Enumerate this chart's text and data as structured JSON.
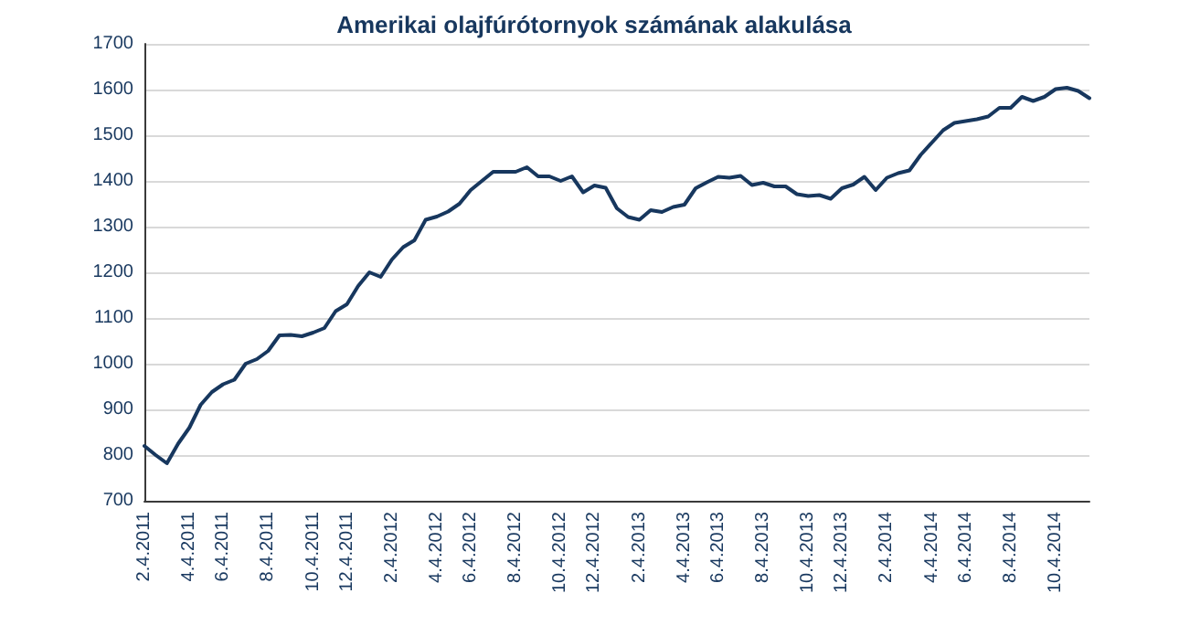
{
  "chart_data": {
    "type": "line",
    "title": "Amerikai olajfúrótornyok számának alakulása",
    "categories": [
      "2.4.2011",
      null,
      null,
      null,
      "4.4.2011",
      null,
      null,
      "6.4.2011",
      null,
      null,
      null,
      "8.4.2011",
      null,
      null,
      null,
      "10.4.2011",
      null,
      null,
      "12.4.2011",
      null,
      null,
      null,
      "2.4.2012",
      null,
      null,
      null,
      "4.4.2012",
      null,
      null,
      "6.4.2012",
      null,
      null,
      null,
      "8.4.2012",
      null,
      null,
      null,
      "10.4.2012",
      null,
      null,
      "12.4.2012",
      null,
      null,
      null,
      "2.4.2013",
      null,
      null,
      null,
      "4.4.2013",
      null,
      null,
      "6.4.2013",
      null,
      null,
      null,
      "8.4.2013",
      null,
      null,
      null,
      "10.4.2013",
      null,
      null,
      "12.4.2013",
      null,
      null,
      null,
      "2.4.2014",
      null,
      null,
      null,
      "4.4.2014",
      null,
      null,
      "6.4.2014",
      null,
      null,
      null,
      "8.4.2014",
      null,
      null,
      null,
      "10.4.2014",
      null,
      null,
      null
    ],
    "series": [
      {
        "color": "#17375e",
        "values": [
          820,
          800,
          782,
          825,
          860,
          910,
          938,
          955,
          965,
          1000,
          1010,
          1028,
          1062,
          1063,
          1060,
          1068,
          1078,
          1115,
          1130,
          1170,
          1200,
          1190,
          1228,
          1255,
          1270,
          1315,
          1322,
          1333,
          1350,
          1380,
          1400,
          1420,
          1420,
          1420,
          1430,
          1410,
          1410,
          1400,
          1410,
          1375,
          1390,
          1385,
          1340,
          1321,
          1315,
          1336,
          1332,
          1343,
          1348,
          1384,
          1397,
          1409,
          1407,
          1411,
          1391,
          1396,
          1388,
          1388,
          1371,
          1367,
          1369,
          1361,
          1384,
          1392,
          1409,
          1380,
          1407,
          1417,
          1423,
          1457,
          1484,
          1511,
          1527,
          1531,
          1535,
          1541,
          1560,
          1560,
          1584,
          1575,
          1584,
          1601,
          1604,
          1597,
          1581
        ]
      }
    ],
    "ylim": [
      700,
      1700
    ],
    "yticks": [
      700,
      800,
      900,
      1000,
      1100,
      1200,
      1300,
      1400,
      1500,
      1600,
      1700
    ],
    "grid": "y",
    "marker": "none",
    "line_style": "solid"
  }
}
